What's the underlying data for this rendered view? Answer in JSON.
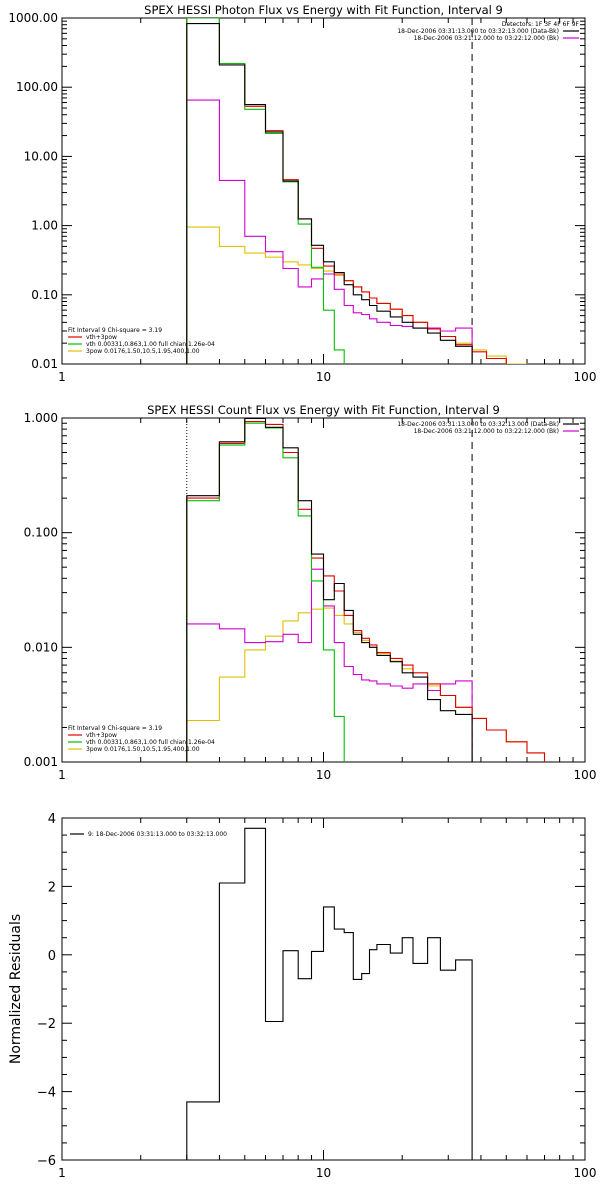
{
  "chart_data": [
    {
      "type": "line",
      "title": "SPEX HESSI Photon Flux vs Energy with Fit Function, Interval 9",
      "xlabel": "",
      "ylabel": "",
      "xscale": "log",
      "yscale": "log",
      "xlim": [
        1,
        100
      ],
      "ylim": [
        0.01,
        1000
      ],
      "x_ticks": [
        "1",
        "10",
        "100"
      ],
      "y_ticks": [
        "0.01",
        "0.10",
        "1.00",
        "10.00",
        "100.00",
        "1000.00"
      ],
      "vlines": [
        {
          "x": 3,
          "style": "dotted"
        },
        {
          "x": 37,
          "style": "dashed"
        }
      ],
      "legend_top_right": [
        "Detectors: 1F 3F 4F 6F 9F",
        "18-Dec-2006 03:31:13.000 to 03:32:13.000 (Data-Bk)",
        "18-Dec-2006 03:21:12.000 to 03:22:12.000 (Bk)"
      ],
      "legend_top_right_colors": [
        null,
        "#000000",
        "#d000d0"
      ],
      "legend_bottom_left": [
        "Fit Interval 9   Chi-square = 3.19",
        "vth+3pow",
        "vth 0.00331,0.863,1.00   full chian 1.26e-04",
        "3pow 0.0176,1.50,10.5,1.95,400,1.00"
      ],
      "legend_bottom_left_colors": [
        null,
        "#e00000",
        "#00c000",
        "#e0c000"
      ],
      "series": [
        {
          "name": "Data-Bk",
          "color": "#000000",
          "edges": [
            3,
            4,
            5,
            6,
            7,
            8,
            9,
            10,
            11,
            12,
            13,
            14,
            15,
            16,
            18,
            20,
            22,
            25,
            28,
            32,
            37
          ],
          "values": [
            830,
            210,
            56,
            22.5,
            4.4,
            1.25,
            0.52,
            0.3,
            0.21,
            0.14,
            0.1,
            0.085,
            0.07,
            0.058,
            0.048,
            0.04,
            0.033,
            0.028,
            0.022,
            0.018
          ]
        },
        {
          "name": "vth+3pow",
          "color": "#e00000",
          "edges": [
            3,
            4,
            5,
            6,
            7,
            8,
            9,
            10,
            11,
            12,
            13,
            14,
            15,
            16,
            18,
            20,
            22,
            25,
            28,
            32,
            37,
            42,
            50
          ],
          "values": [
            1000,
            220,
            53,
            23.5,
            4.6,
            1.25,
            0.47,
            0.26,
            0.2,
            0.16,
            0.13,
            0.11,
            0.09,
            0.075,
            0.062,
            0.05,
            0.04,
            0.032,
            0.025,
            0.019,
            0.015,
            0.012
          ]
        },
        {
          "name": "vth",
          "color": "#00c000",
          "edges": [
            3,
            4,
            5,
            6,
            7,
            8,
            9,
            10,
            11,
            12
          ],
          "values": [
            1000,
            220,
            48,
            21.5,
            4.3,
            1.05,
            0.25,
            0.06,
            0.016
          ]
        },
        {
          "name": "3pow",
          "color": "#e0c000",
          "edges": [
            3,
            4,
            5,
            6,
            7,
            8,
            9,
            10,
            11,
            12,
            13,
            14,
            15,
            16,
            18,
            20,
            22,
            25,
            28,
            32,
            37,
            42,
            50,
            60
          ],
          "values": [
            0.95,
            0.5,
            0.4,
            0.35,
            0.3,
            0.27,
            0.24,
            0.22,
            0.19,
            0.16,
            0.13,
            0.11,
            0.09,
            0.075,
            0.062,
            0.05,
            0.04,
            0.032,
            0.025,
            0.02,
            0.016,
            0.013,
            0.01
          ]
        },
        {
          "name": "Bk",
          "color": "#d000d0",
          "edges": [
            3,
            4,
            5,
            6,
            7,
            8,
            9,
            10,
            11,
            12,
            13,
            14,
            15,
            16,
            18,
            20,
            22,
            25,
            28,
            32,
            37
          ],
          "values": [
            65,
            4.5,
            0.7,
            0.42,
            0.24,
            0.13,
            0.17,
            0.2,
            0.12,
            0.07,
            0.055,
            0.052,
            0.045,
            0.04,
            0.036,
            0.035,
            0.033,
            0.033,
            0.03,
            0.033
          ]
        }
      ]
    },
    {
      "type": "line",
      "title": "SPEX HESSI Count Flux vs Energy with Fit Function, Interval 9",
      "xlabel": "",
      "ylabel": "",
      "xscale": "log",
      "yscale": "log",
      "xlim": [
        1,
        100
      ],
      "ylim": [
        0.001,
        1
      ],
      "x_ticks": [
        "1",
        "10",
        "100"
      ],
      "y_ticks": [
        "0.001",
        "0.010",
        "0.100",
        "1.000"
      ],
      "vlines": [
        {
          "x": 3,
          "style": "dotted"
        },
        {
          "x": 37,
          "style": "dashed"
        }
      ],
      "legend_top_right": [
        "18-Dec-2006 03:31:13.000 to 03:32:13.000 (Data-Bk)",
        "18-Dec-2006 03:21:12.000 to 03:22:12.000 (Bk)"
      ],
      "legend_top_right_colors": [
        "#000000",
        "#d000d0"
      ],
      "legend_bottom_left": [
        "Fit Interval 9   Chi-square = 3.19",
        "vth+3pow",
        "vth 0.00331,0.863,1.00   full chian 1.26e-04",
        "3pow 0.0176,1.50,10.5,1.95,400,1.00"
      ],
      "legend_bottom_left_colors": [
        null,
        "#e00000",
        "#00c000",
        "#e0c000"
      ],
      "series": [
        {
          "name": "Data-Bk",
          "color": "#000000",
          "edges": [
            3,
            4,
            5,
            6,
            7,
            8,
            9,
            10,
            11,
            12,
            13,
            14,
            15,
            16,
            18,
            20,
            22,
            25,
            28,
            32,
            37
          ],
          "values": [
            0.21,
            0.62,
            0.99,
            0.83,
            0.55,
            0.19,
            0.065,
            0.026,
            0.036,
            0.021,
            0.013,
            0.011,
            0.01,
            0.0085,
            0.0075,
            0.006,
            0.0055,
            0.0035,
            0.0028,
            0.0026
          ]
        },
        {
          "name": "vth+3pow",
          "color": "#e00000",
          "edges": [
            3,
            4,
            5,
            6,
            7,
            8,
            9,
            10,
            11,
            12,
            13,
            14,
            15,
            16,
            18,
            20,
            22,
            25,
            28,
            32,
            37,
            42,
            50,
            60,
            70
          ],
          "values": [
            0.2,
            0.6,
            0.93,
            0.88,
            0.5,
            0.16,
            0.06,
            0.042,
            0.031,
            0.019,
            0.014,
            0.012,
            0.0105,
            0.009,
            0.008,
            0.007,
            0.006,
            0.0048,
            0.0038,
            0.003,
            0.0024,
            0.0019,
            0.0015,
            0.0012
          ]
        },
        {
          "name": "vth",
          "color": "#00c000",
          "edges": [
            3,
            4,
            5,
            6,
            7,
            8,
            9,
            10,
            11,
            12
          ],
          "values": [
            0.19,
            0.58,
            0.9,
            0.82,
            0.45,
            0.14,
            0.038,
            0.0095,
            0.0025
          ]
        },
        {
          "name": "3pow",
          "color": "#e0c000",
          "edges": [
            3,
            4,
            5,
            6,
            7,
            8,
            9,
            10,
            11,
            12,
            13,
            14,
            15,
            16,
            18,
            20,
            22,
            25,
            28,
            32,
            37,
            42,
            50,
            60,
            70
          ],
          "values": [
            0.0023,
            0.0055,
            0.0095,
            0.0125,
            0.017,
            0.02,
            0.0215,
            0.022,
            0.019,
            0.016,
            0.0135,
            0.0115,
            0.01,
            0.0088,
            0.0076,
            0.0065,
            0.0055,
            0.0046,
            0.0038,
            0.003,
            0.0024,
            0.0019,
            0.0015,
            0.0012
          ]
        },
        {
          "name": "Bk",
          "color": "#d000d0",
          "edges": [
            3,
            4,
            5,
            6,
            7,
            8,
            9,
            10,
            11,
            12,
            13,
            14,
            15,
            16,
            18,
            20,
            22,
            25,
            28,
            32,
            37
          ],
          "values": [
            0.016,
            0.0145,
            0.011,
            0.0112,
            0.013,
            0.011,
            0.048,
            0.023,
            0.011,
            0.0068,
            0.0058,
            0.0052,
            0.0051,
            0.0048,
            0.0046,
            0.0044,
            0.0048,
            0.0042,
            0.0048,
            0.0051
          ]
        }
      ]
    },
    {
      "type": "line",
      "title": "",
      "xlabel": "",
      "ylabel": "Normalized Residuals",
      "xscale": "log",
      "yscale": "linear",
      "xlim": [
        1,
        100
      ],
      "ylim": [
        -6,
        4
      ],
      "x_ticks": [
        "1",
        "10",
        "100"
      ],
      "y_ticks": [
        "4",
        "2",
        "0",
        "−2",
        "−4",
        "−6"
      ],
      "legend_top_left": [
        "9: 18-Dec-2006 03:31:13.000 to 03:32:13.000"
      ],
      "series": [
        {
          "name": "9: 18-Dec-2006 03:31:13.000 to 03:32:13.000",
          "color": "#000000",
          "edges": [
            3,
            4,
            5,
            6,
            7,
            8,
            9,
            10,
            11,
            12,
            13,
            14,
            15,
            16,
            18,
            20,
            22,
            25,
            28,
            32,
            37
          ],
          "values": [
            -4.3,
            2.1,
            3.7,
            -1.95,
            0.12,
            -0.7,
            0.1,
            1.4,
            0.75,
            0.65,
            -0.72,
            -0.55,
            0.15,
            0.3,
            0.05,
            0.5,
            -0.25,
            0.5,
            -0.45,
            -0.15
          ],
          "drop_to": -6
        }
      ]
    }
  ]
}
